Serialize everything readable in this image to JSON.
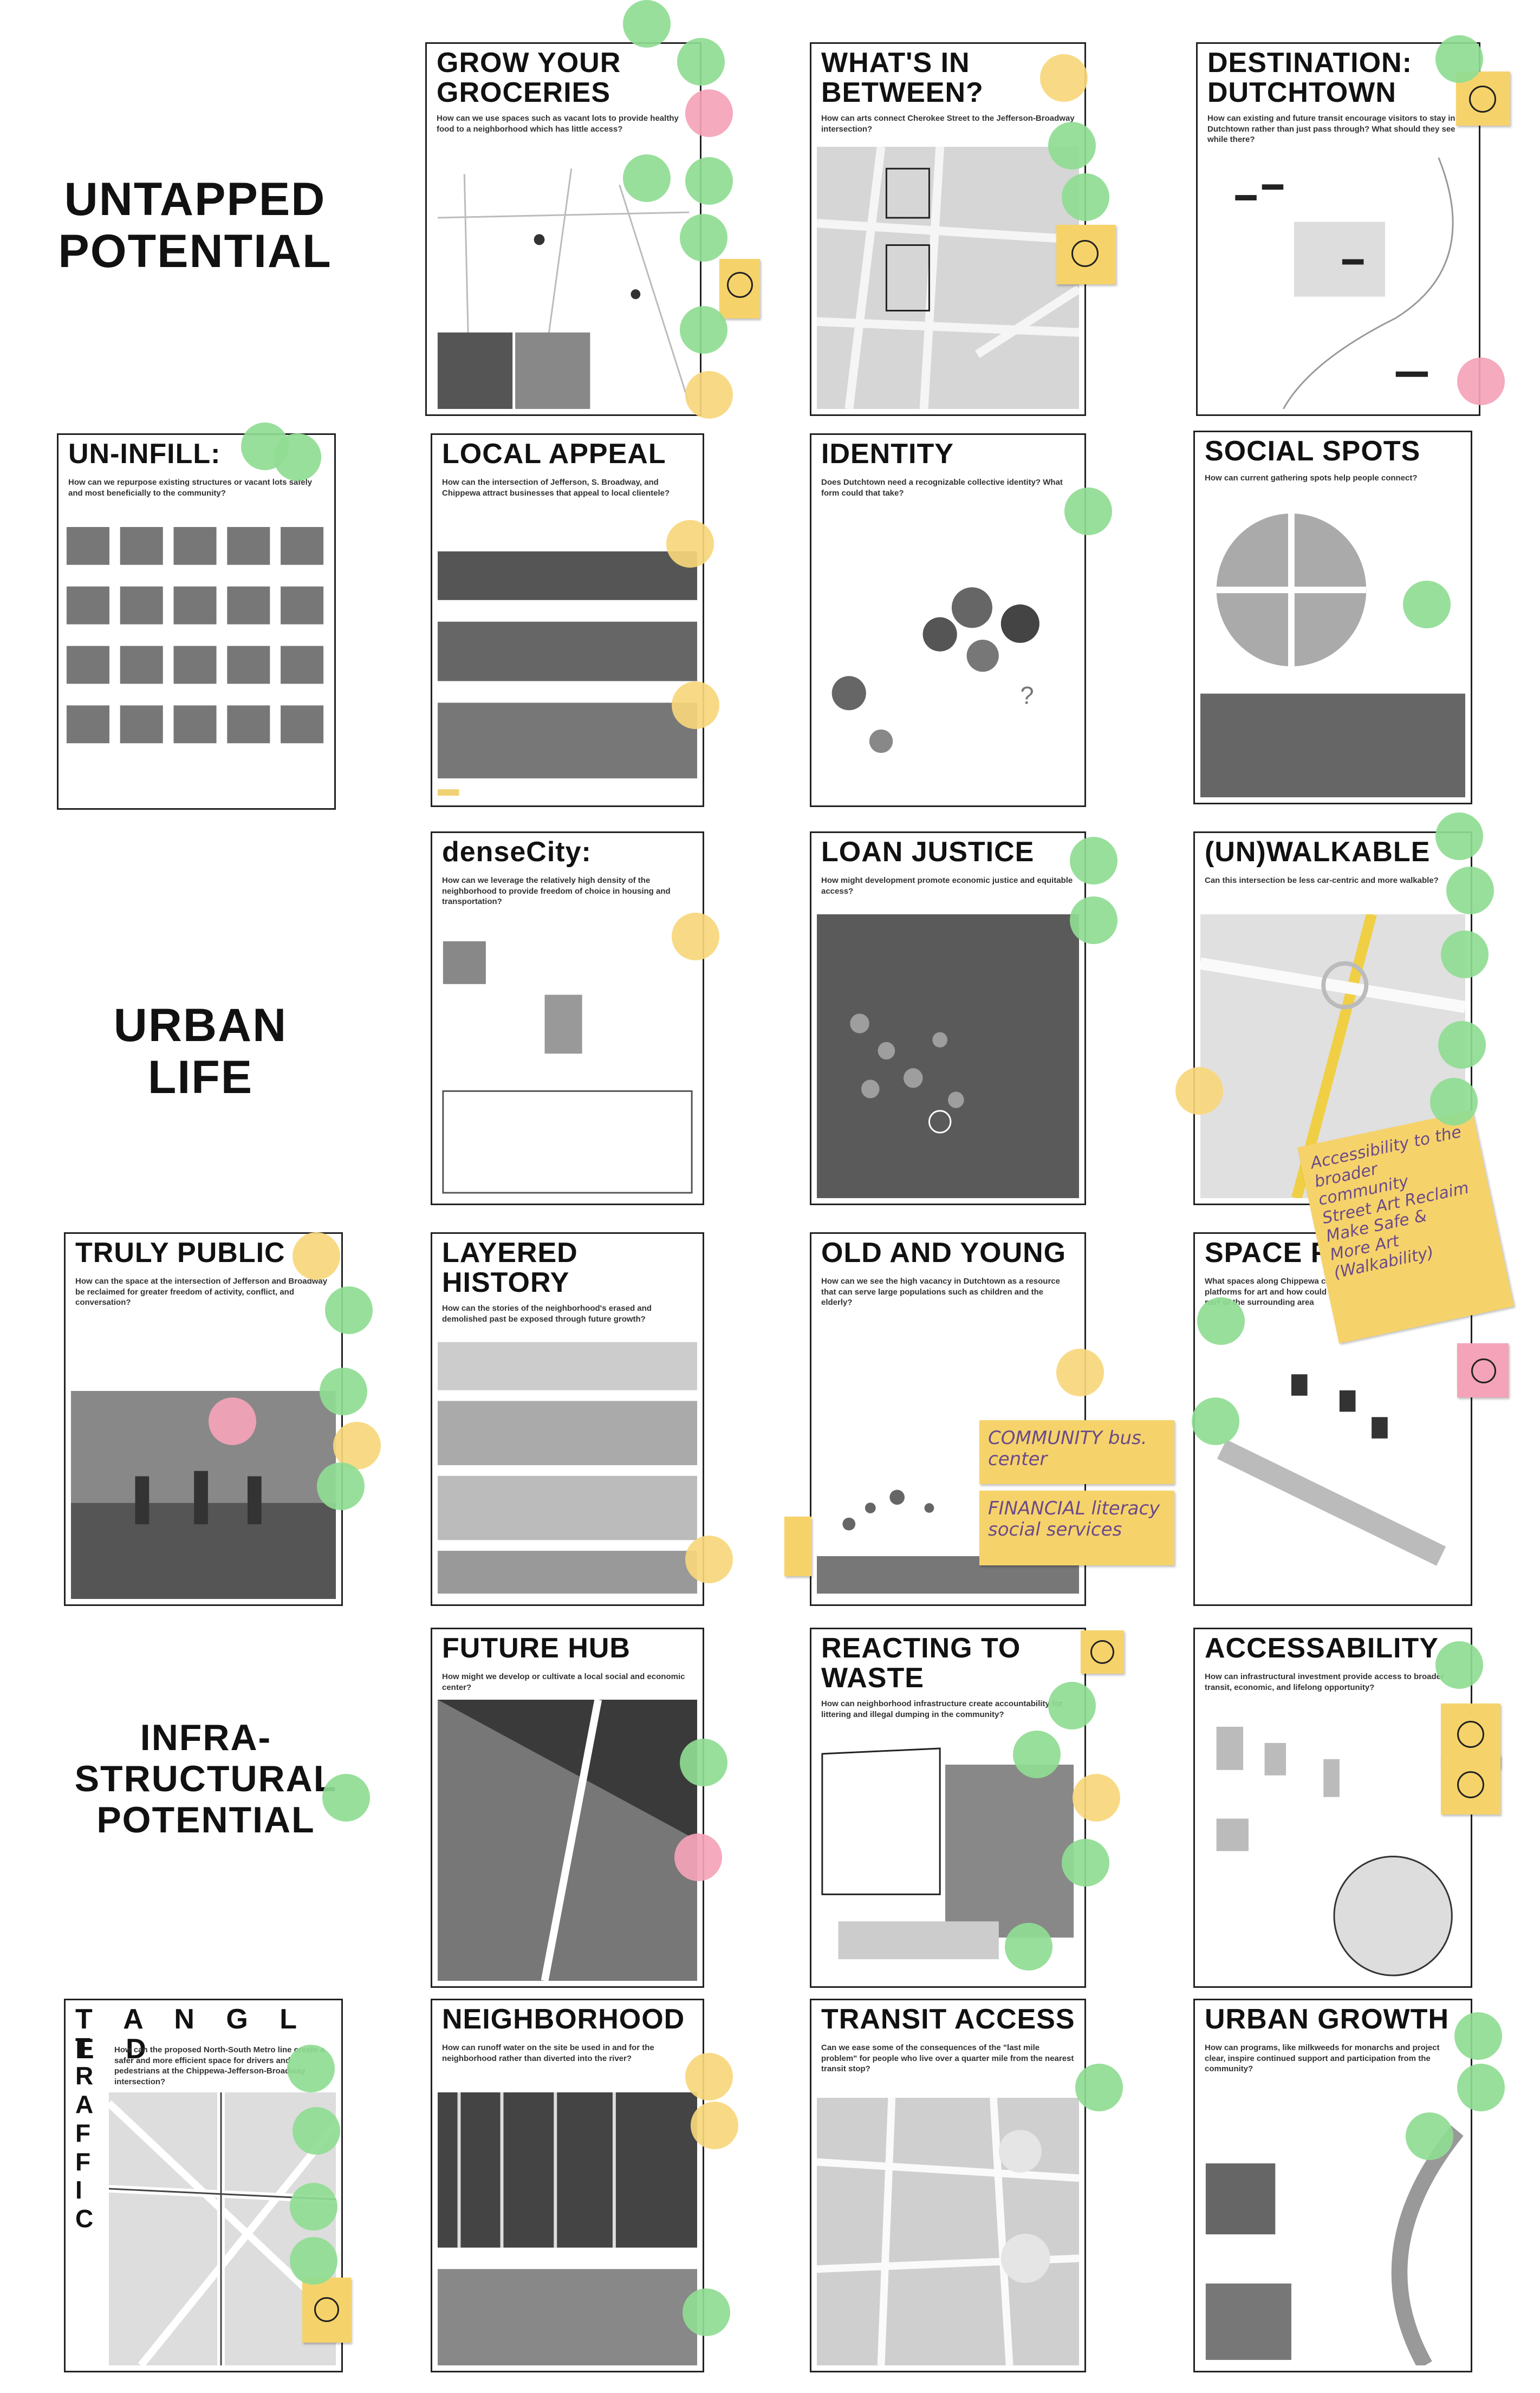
{
  "sections": [
    {
      "label": "UNTAPPED\nPOTENTIAL"
    },
    {
      "label": "URBAN\nLIFE"
    },
    {
      "label": "INFRA-\nSTRUCTURAL\nPOTENTIAL"
    }
  ],
  "cards": [
    {
      "title": "GROW YOUR\nGROCERIES",
      "sub": "How can we use spaces such as vacant lots to provide healthy food to a neighborhood which has little access?"
    },
    {
      "title": "WHAT'S IN\nBETWEEN?",
      "sub": "How can arts connect Cherokee Street to the Jefferson-Broadway intersection?"
    },
    {
      "title": "DESTINATION:\nDUTCHTOWN",
      "sub": "How can existing and future transit encourage visitors to stay in Dutchtown rather than just pass through? What should they see while there?"
    },
    {
      "title": "UN-INFILL:",
      "sub": "How can we repurpose existing structures or vacant lots safely and most beneficially to the community?"
    },
    {
      "title": "LOCAL APPEAL",
      "sub": "How can the intersection of Jefferson, S. Broadway, and Chippewa attract businesses that appeal to local clientele?"
    },
    {
      "title": "IDENTITY",
      "sub": "Does Dutchtown need a recognizable collective identity? What form could that take?"
    },
    {
      "title": "SOCIAL SPOTS",
      "sub": "How can current gathering spots help people connect?"
    },
    {
      "title": "denseCity:",
      "sub": "How can we leverage the relatively high density of the neighborhood to provide freedom of choice in housing and transportation?"
    },
    {
      "title": "LOAN JUSTICE",
      "sub": "How might development promote economic justice and equitable access?"
    },
    {
      "title": "(UN)WALKABLE",
      "sub": "Can this intersection be less car-centric and more walkable?"
    },
    {
      "title": "TRULY PUBLIC",
      "sub": "How can the space at the intersection of Jefferson and Broadway be reclaimed for greater freedom of activity, conflict, and conversation?"
    },
    {
      "title": "LAYERED\nHISTORY",
      "sub": "How can the stories of the neighborhood's erased and demolished past be exposed through future growth?"
    },
    {
      "title": "OLD AND YOUNG",
      "sub": "How can we see the high vacancy in Dutchtown as a resource that can serve large populations such as children and the elderly?"
    },
    {
      "title": "SPACE FO",
      "sub": "What spaces along Chippewa can platforms for art and how could they narr of the surrounding area"
    },
    {
      "title": "FUTURE HUB",
      "sub": "How might we develop or cultivate a local social and economic center?"
    },
    {
      "title": "REACTING TO\nWASTE",
      "sub": "How can neighborhood infrastructure create accountability for littering and illegal dumping in the community?"
    },
    {
      "title": "ACCESSABILITY",
      "sub": "How can infrastructural investment provide access to broader transit, economic, and lifelong opportunity?"
    },
    {
      "title": "T A N G L E D",
      "sub": "How can the proposed North-South Metro line create a safer and more efficient space for drivers and pedestrians at the Chippewa-Jefferson-Broadway intersection?"
    },
    {
      "title": "NEIGHBORHOOD",
      "sub": "How can runoff water on the site be used in and for the neighborhood rather than diverted into the river?"
    },
    {
      "title": "TRANSIT ACCESS",
      "sub": "Can we ease some of the consequences of the \"last mile problem\" for people who live over a quarter mile from the nearest transit stop?"
    },
    {
      "title": "URBAN GROWTH",
      "sub": "How can programs, like milkweeds for monarchs and project clear, inspire continued support and participation from the community?"
    }
  ],
  "notes": [
    {
      "text": "COMMUNITY bus.\ncenter"
    },
    {
      "text": "FINANCIAL literacy\nsocial services"
    },
    {
      "text": "Accessibility to the\nbroader community\nStreet Art Reclaim\nMake Safe &\nMore Art\n(Walkability)"
    }
  ],
  "colors": {
    "green": "#8fdc93",
    "yellow": "#f7d77c",
    "pink": "#f4a3b8",
    "sticky": "#f6d36a"
  }
}
